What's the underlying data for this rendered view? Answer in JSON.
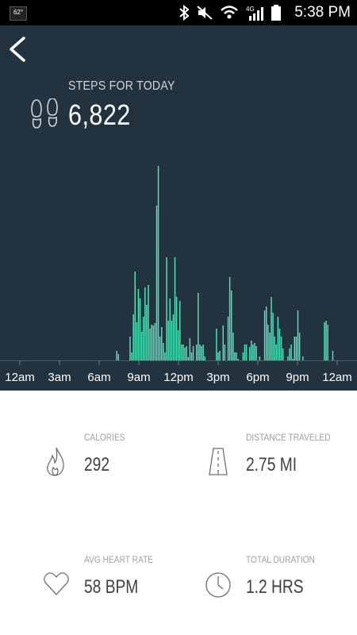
{
  "status_bar": {
    "notification": "62°",
    "time": "5:38 PM",
    "icons": [
      "bluetooth-icon",
      "mute-icon",
      "wifi-icon",
      "4g-lte-icon",
      "signal-icon",
      "battery-icon"
    ]
  },
  "header": {
    "title": "STEPS FOR TODAY",
    "steps": "6,822"
  },
  "chart_data": {
    "type": "bar",
    "x_labels": [
      "12am",
      "3am",
      "6am",
      "9am",
      "12pm",
      "3pm",
      "6pm",
      "9pm",
      "12am"
    ],
    "values": [
      0,
      0,
      0,
      0,
      0,
      0,
      0,
      0,
      0,
      0,
      0,
      0,
      0,
      0,
      0,
      0,
      0,
      0,
      0,
      0,
      0,
      0,
      0,
      0,
      0,
      0,
      0,
      0,
      0,
      0,
      0,
      0,
      0,
      0,
      0,
      0,
      0,
      0,
      0,
      0,
      0,
      0,
      0,
      0,
      0,
      0,
      0,
      0,
      0,
      0,
      0,
      0,
      0,
      0,
      0,
      0,
      0,
      0,
      12,
      8,
      0,
      0,
      0,
      0,
      0,
      0,
      30,
      10,
      58,
      112,
      48,
      90,
      78,
      36,
      55,
      92,
      70,
      95,
      40,
      45,
      44,
      47,
      195,
      245,
      30,
      42,
      22,
      10,
      130,
      50,
      78,
      50,
      58,
      130,
      80,
      38,
      75,
      20,
      20,
      16,
      18,
      4,
      28,
      10,
      18,
      0,
      20,
      85,
      20,
      18,
      20,
      5,
      0,
      0,
      0,
      0,
      0,
      0,
      40,
      10,
      12,
      0,
      44,
      20,
      0,
      55,
      105,
      88,
      35,
      10,
      10,
      2,
      0,
      0,
      10,
      20,
      20,
      0,
      17,
      25,
      20,
      22,
      18,
      0,
      5,
      0,
      0,
      63,
      68,
      45,
      35,
      80,
      60,
      30,
      20,
      55,
      40,
      30,
      15,
      0,
      0,
      5,
      15,
      20,
      2,
      30,
      30,
      63,
      35,
      0,
      5,
      0,
      0,
      0,
      0,
      0,
      0,
      0,
      0,
      0,
      0,
      0,
      0,
      48,
      50,
      45,
      0,
      0,
      12,
      0,
      0
    ],
    "accent": "#4ee0b7",
    "background": "#22323f"
  },
  "stats": {
    "calories": {
      "label": "CALORIES",
      "value": "292"
    },
    "distance": {
      "label": "DISTANCE TRAVELED",
      "value": "2.75 MI"
    },
    "heart": {
      "label": "AVG HEART RATE",
      "value": "58 BPM"
    },
    "duration": {
      "label": "TOTAL DURATION",
      "value": "1.2 HRS"
    }
  }
}
